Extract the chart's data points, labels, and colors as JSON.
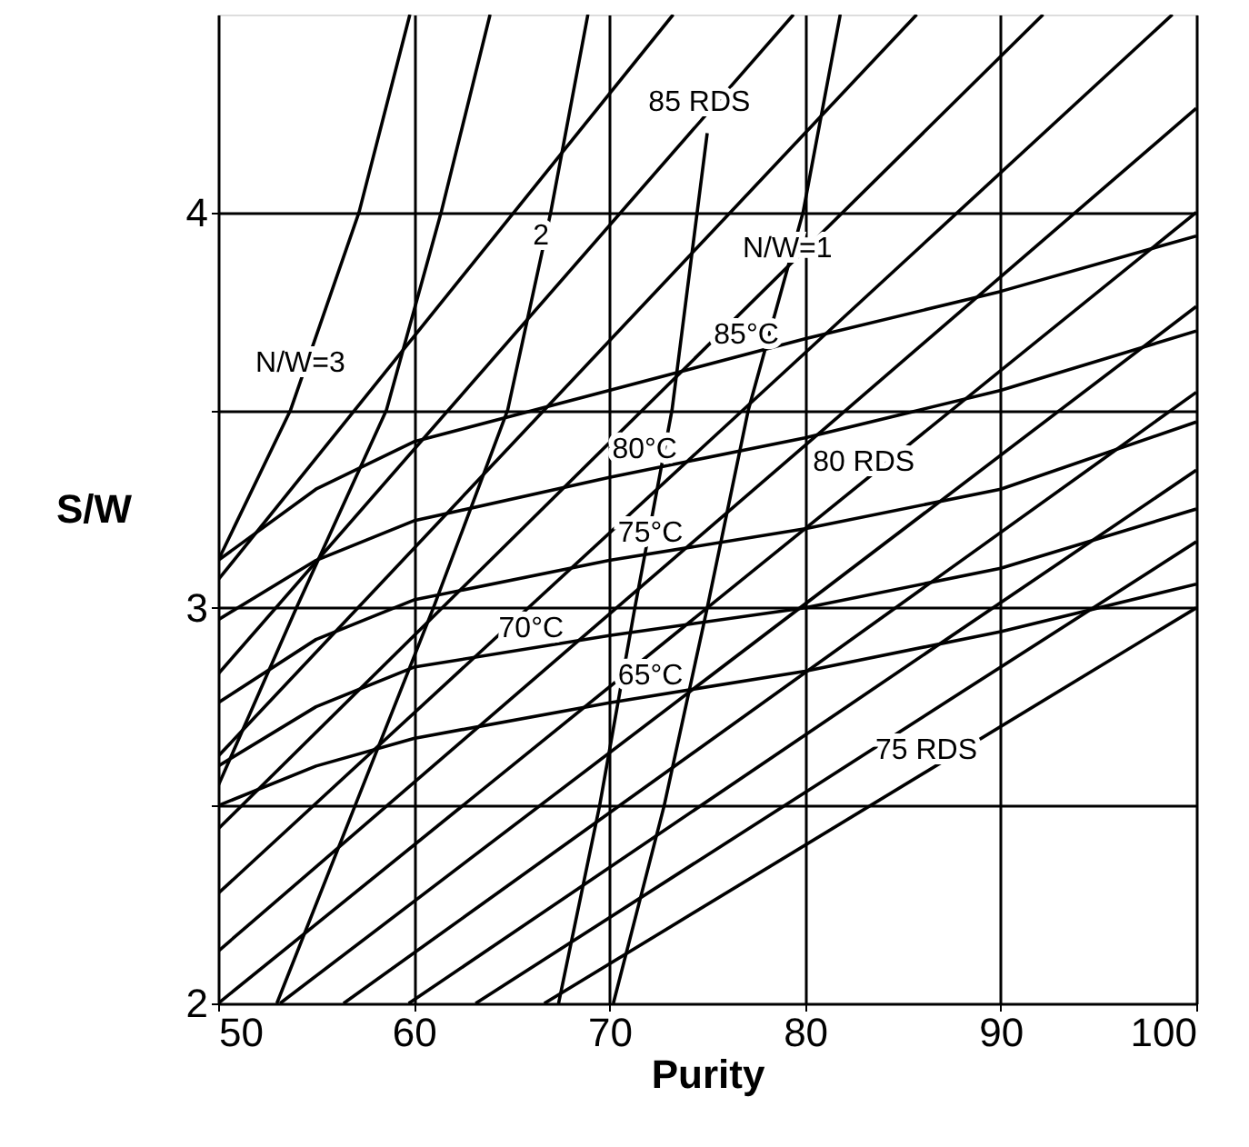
{
  "chart_data": {
    "type": "line",
    "xlabel": "Purity",
    "ylabel": "S/W",
    "xlim": [
      50,
      100
    ],
    "ylim": [
      2,
      4.5
    ],
    "xticks": [
      50,
      60,
      70,
      80,
      90,
      100
    ],
    "yticks": [
      {
        "value": 2,
        "label": "2"
      },
      {
        "value": 2.5,
        "label": null
      },
      {
        "value": 3,
        "label": "3"
      },
      {
        "value": 3.5,
        "label": null
      },
      {
        "value": 4,
        "label": "4"
      }
    ],
    "grid": true,
    "series": [
      {
        "color": "#000000",
        "x": [
          66.67,
          100
        ],
        "values": [
          2,
          3.0
        ]
      },
      {
        "color": "#000000",
        "x": [
          63.16,
          100
        ],
        "values": [
          2,
          3.167
        ]
      },
      {
        "color": "#000000",
        "x": [
          59.74,
          100
        ],
        "values": [
          2,
          3.348
        ]
      },
      {
        "color": "#000000",
        "x": [
          56.41,
          100
        ],
        "values": [
          2,
          3.545
        ]
      },
      {
        "color": "#000000",
        "x": [
          53.16,
          100
        ],
        "values": [
          2,
          3.762
        ]
      },
      {
        "color": "#000000",
        "x": [
          50,
          100
        ],
        "values": [
          2,
          4.0
        ]
      },
      {
        "color": "#000000",
        "x": [
          50,
          100
        ],
        "values": [
          2.132,
          4.263
        ]
      },
      {
        "color": "#000000",
        "x": [
          50,
          98.78
        ],
        "values": [
          2.278,
          4.5
        ]
      },
      {
        "color": "#000000",
        "x": [
          50,
          92.17
        ],
        "values": [
          2.441,
          4.5
        ]
      },
      {
        "color": "#000000",
        "x": [
          50,
          85.71
        ],
        "values": [
          2.625,
          4.5
        ]
      },
      {
        "color": "#000000",
        "x": [
          50,
          79.41
        ],
        "values": [
          2.833,
          4.5
        ]
      },
      {
        "color": "#000000",
        "x": [
          50,
          73.26
        ],
        "values": [
          3.071,
          4.5
        ]
      },
      {
        "color": "#000000",
        "x": [
          50,
          55,
          60,
          70,
          80,
          90,
          100
        ],
        "values": [
          2.5,
          2.6,
          2.67,
          2.76,
          2.84,
          2.94,
          3.06
        ]
      },
      {
        "color": "#000000",
        "x": [
          50,
          55,
          60,
          70,
          80,
          90,
          100
        ],
        "values": [
          2.6,
          2.75,
          2.85,
          2.93,
          3.0,
          3.1,
          3.25
        ]
      },
      {
        "color": "#000000",
        "x": [
          50,
          55,
          60,
          70,
          80,
          90,
          100
        ],
        "values": [
          2.76,
          2.92,
          3.02,
          3.12,
          3.2,
          3.3,
          3.47
        ]
      },
      {
        "color": "#000000",
        "x": [
          50,
          55,
          60,
          70,
          80,
          90,
          100
        ],
        "values": [
          2.97,
          3.12,
          3.22,
          3.33,
          3.43,
          3.55,
          3.7
        ]
      },
      {
        "color": "#000000",
        "x": [
          50,
          55,
          60,
          70,
          80,
          90,
          100
        ],
        "values": [
          3.12,
          3.3,
          3.42,
          3.55,
          3.68,
          3.8,
          3.94
        ]
      },
      {
        "color": "#000000",
        "x": [
          50,
          53.7,
          57.2,
          59.8
        ],
        "values": [
          3.12,
          3.5,
          4.0,
          4.5
        ]
      },
      {
        "color": "#000000",
        "x": [
          50,
          54,
          58.6,
          61.4,
          63.9
        ],
        "values": [
          2.55,
          3.0,
          3.5,
          4.0,
          4.5
        ]
      },
      {
        "color": "#000000",
        "x": [
          53,
          57,
          61,
          64.8,
          67,
          68.9
        ],
        "values": [
          2.0,
          2.5,
          3.0,
          3.5,
          4.0,
          4.5
        ]
      },
      {
        "color": "#000000",
        "x": [
          67.4,
          69.5,
          71.3,
          73.2,
          75.0
        ],
        "values": [
          2.0,
          2.5,
          3.0,
          3.5,
          4.2
        ]
      },
      {
        "color": "#000000",
        "x": [
          70.2,
          72.8,
          75.0,
          77.1,
          79.9,
          81.8
        ],
        "values": [
          2.0,
          2.5,
          3.0,
          3.5,
          4.0,
          4.5
        ]
      }
    ],
    "annotations": [
      {
        "text": "N/W=3",
        "x": 54.2,
        "y": 3.57
      },
      {
        "text": "2",
        "x": 66.5,
        "y": 3.89
      },
      {
        "text": "N/W=1",
        "x": 79.1,
        "y": 3.86
      },
      {
        "text": "85 RDS",
        "x": 74.6,
        "y": 4.23
      },
      {
        "text": "85°C",
        "x": 77,
        "y": 3.64
      },
      {
        "text": "80°C",
        "x": 71.8,
        "y": 3.35
      },
      {
        "text": "75°C",
        "x": 72.1,
        "y": 3.14
      },
      {
        "text": "70°C",
        "x": 66,
        "y": 2.898
      },
      {
        "text": "65°C",
        "x": 72.1,
        "y": 2.78
      },
      {
        "text": "80 RDS",
        "x": 83,
        "y": 3.32
      },
      {
        "text": "75 RDS",
        "x": 86.2,
        "y": 2.59
      }
    ]
  }
}
